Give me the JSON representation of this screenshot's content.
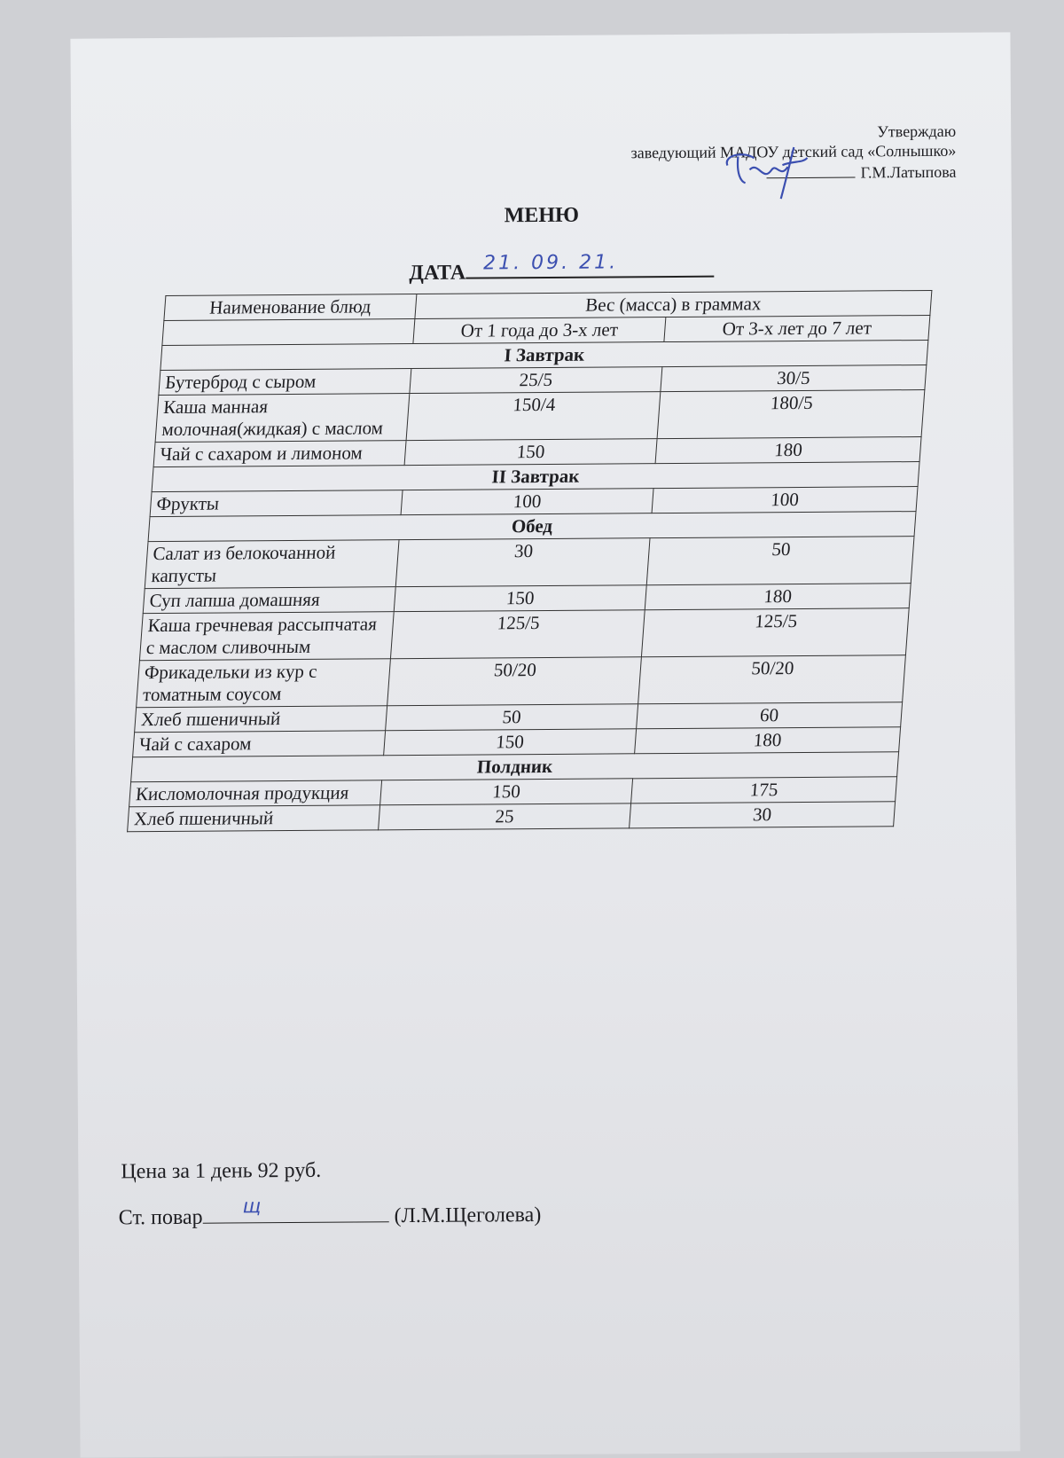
{
  "approval": {
    "line1": "Утверждаю",
    "line2": "заведующий МАДОУ детский сад «Солнышко»",
    "line3": "Г.М.Латыпова"
  },
  "title": "МЕНЮ",
  "date_label": "ДАТА",
  "date_value": "21. 09. 21.",
  "table": {
    "header_name": "Наименование блюд",
    "header_weight": "Вес (масса) в граммах",
    "header_age1": "От 1 года до 3-х лет",
    "header_age2": "От 3-х лет до 7 лет",
    "sections": [
      {
        "title": "I Завтрак",
        "rows": [
          {
            "name": "Бутерброд с сыром",
            "a": "25/5",
            "b": "30/5"
          },
          {
            "name": "Каша манная молочная(жидкая) с маслом",
            "a": "150/4",
            "b": "180/5"
          },
          {
            "name": "Чай с сахаром и лимоном",
            "a": "150",
            "b": "180"
          }
        ]
      },
      {
        "title": "II Завтрак",
        "rows": [
          {
            "name": "Фрукты",
            "a": "100",
            "b": "100"
          }
        ]
      },
      {
        "title": "Обед",
        "rows": [
          {
            "name": "Салат из белокочанной капусты",
            "a": "30",
            "b": "50"
          },
          {
            "name": "Суп лапша домашняя",
            "a": "150",
            "b": "180"
          },
          {
            "name": "Каша гречневая рассыпчатая с маслом сливочным",
            "a": "125/5",
            "b": "125/5"
          },
          {
            "name": "Фрикадельки из кур с томатным соусом",
            "a": "50/20",
            "b": "50/20"
          },
          {
            "name": "Хлеб пшеничный",
            "a": "50",
            "b": "60"
          },
          {
            "name": "Чай с сахаром",
            "a": "150",
            "b": "180"
          }
        ]
      },
      {
        "title": "Полдник",
        "rows": [
          {
            "name": "Кисломолочная продукция",
            "a": "150",
            "b": "175"
          },
          {
            "name": "Хлеб пшеничный",
            "a": "25",
            "b": "30"
          }
        ]
      }
    ]
  },
  "price": "Цена за 1 день 92 руб.",
  "cook_label": "Ст. повар",
  "cook_signature": "щ",
  "cook_name": "(Л.М.Щеголева)",
  "ink_color": "#3b4fb0"
}
